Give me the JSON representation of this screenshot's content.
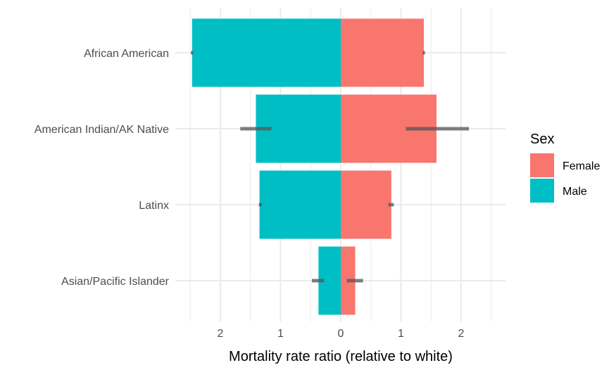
{
  "chart_data": {
    "type": "bar",
    "orientation": "horizontal",
    "layout": "back-to-back (population pyramid)",
    "categories": [
      "African American",
      "American Indian/AK Native",
      "Latinx",
      "Asian/Pacific Islander"
    ],
    "series": [
      {
        "name": "Female",
        "color": "#F8766D",
        "side": "right",
        "values": [
          1.38,
          1.59,
          0.84,
          0.24
        ],
        "error_low": [
          1.36,
          1.08,
          0.79,
          0.1
        ],
        "error_high": [
          1.4,
          2.13,
          0.88,
          0.37
        ]
      },
      {
        "name": "Male",
        "color": "#00BFC4",
        "side": "left",
        "values": [
          2.47,
          1.41,
          1.35,
          0.37
        ],
        "error_low": [
          2.45,
          1.15,
          1.31,
          0.28
        ],
        "error_high": [
          2.49,
          1.67,
          1.36,
          0.48
        ]
      }
    ],
    "xlabel": "Mortality rate ratio (relative to white)",
    "ylabel": "",
    "xlim": [
      -2.75,
      2.75
    ],
    "x_ticks": [
      {
        "value": -2,
        "label": "2"
      },
      {
        "value": -1,
        "label": "1"
      },
      {
        "value": 0,
        "label": "0"
      },
      {
        "value": 1,
        "label": "1"
      },
      {
        "value": 2,
        "label": "2"
      }
    ],
    "legend": {
      "title": "Sex",
      "position": "right",
      "entries": [
        {
          "label": "Female",
          "color": "#F8766D"
        },
        {
          "label": "Male",
          "color": "#00BFC4"
        }
      ]
    },
    "grid": true,
    "error_bar_color": "#555555",
    "grid_color": "#EBEBEB"
  }
}
